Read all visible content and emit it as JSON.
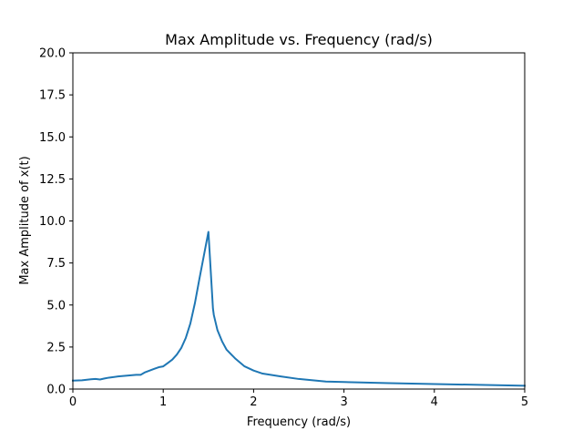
{
  "chart_data": {
    "type": "line",
    "title": "Max Amplitude vs. Frequency (rad/s)",
    "xlabel": "Frequency (rad/s)",
    "ylabel": "Max Amplitude of x(t)",
    "xlim": [
      0,
      5
    ],
    "ylim": [
      0,
      20
    ],
    "xticks": [
      0,
      1,
      2,
      3,
      4,
      5
    ],
    "xtick_labels": [
      "0",
      "1",
      "2",
      "3",
      "4",
      "5"
    ],
    "yticks": [
      0,
      2.5,
      5,
      7.5,
      10,
      12.5,
      15,
      17.5,
      20
    ],
    "ytick_labels": [
      "0.0",
      "2.5",
      "5.0",
      "7.5",
      "10.0",
      "12.5",
      "15.0",
      "17.5",
      "20.0"
    ],
    "grid": false,
    "legend": "none",
    "series": [
      {
        "color": "#1f77b4",
        "x": [
          0,
          0.1,
          0.2,
          0.25,
          0.3,
          0.35,
          0.4,
          0.5,
          0.6,
          0.7,
          0.75,
          0.8,
          0.9,
          0.95,
          1.0,
          1.05,
          1.1,
          1.15,
          1.2,
          1.25,
          1.3,
          1.35,
          1.4,
          1.45,
          1.5,
          1.55,
          1.56,
          1.6,
          1.65,
          1.7,
          1.8,
          1.9,
          2.0,
          2.1,
          2.3,
          2.5,
          2.8,
          3.0,
          3.5,
          4.0,
          4.5,
          5.0
        ],
        "y": [
          0.5,
          0.52,
          0.58,
          0.6,
          0.57,
          0.63,
          0.68,
          0.75,
          0.8,
          0.85,
          0.85,
          1.0,
          1.2,
          1.3,
          1.35,
          1.55,
          1.75,
          2.05,
          2.45,
          3.05,
          3.9,
          5.1,
          6.55,
          7.95,
          9.35,
          4.8,
          4.4,
          3.5,
          2.85,
          2.35,
          1.8,
          1.35,
          1.1,
          0.92,
          0.75,
          0.6,
          0.45,
          0.42,
          0.35,
          0.3,
          0.25,
          0.2
        ]
      }
    ]
  }
}
